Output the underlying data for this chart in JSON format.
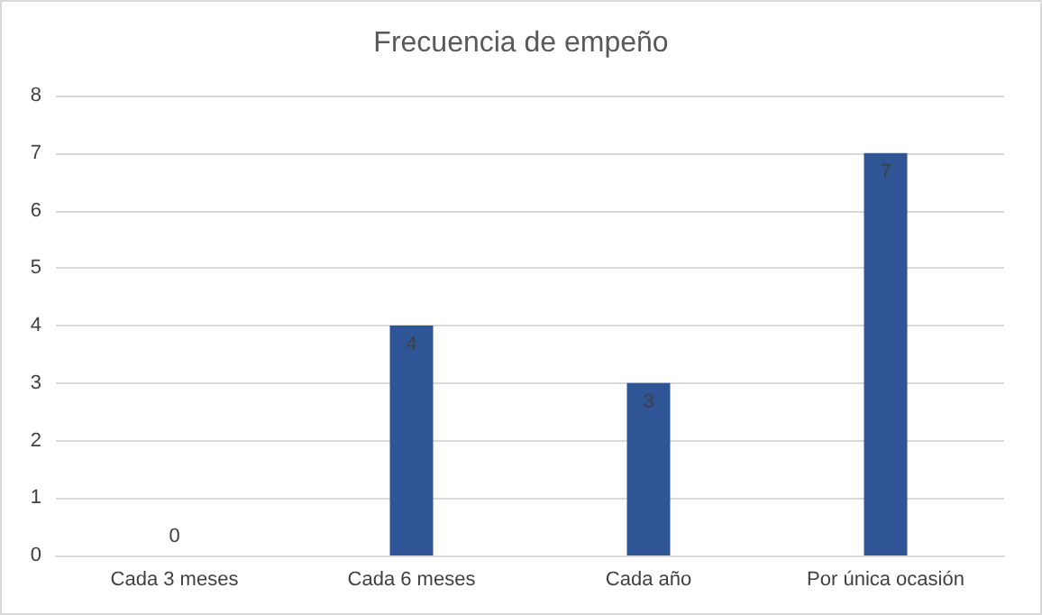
{
  "chart_data": {
    "type": "bar",
    "title": "Frecuencia de empeño",
    "categories": [
      "Cada 3 meses",
      "Cada 6 meses",
      "Cada año",
      "Por única ocasión"
    ],
    "values": [
      0,
      4,
      3,
      7
    ],
    "color": "#2f5597",
    "ylim": [
      0,
      8
    ],
    "yticks": [
      0,
      1,
      2,
      3,
      4,
      5,
      6,
      7,
      8
    ],
    "grid": "y",
    "data_labels": true
  }
}
